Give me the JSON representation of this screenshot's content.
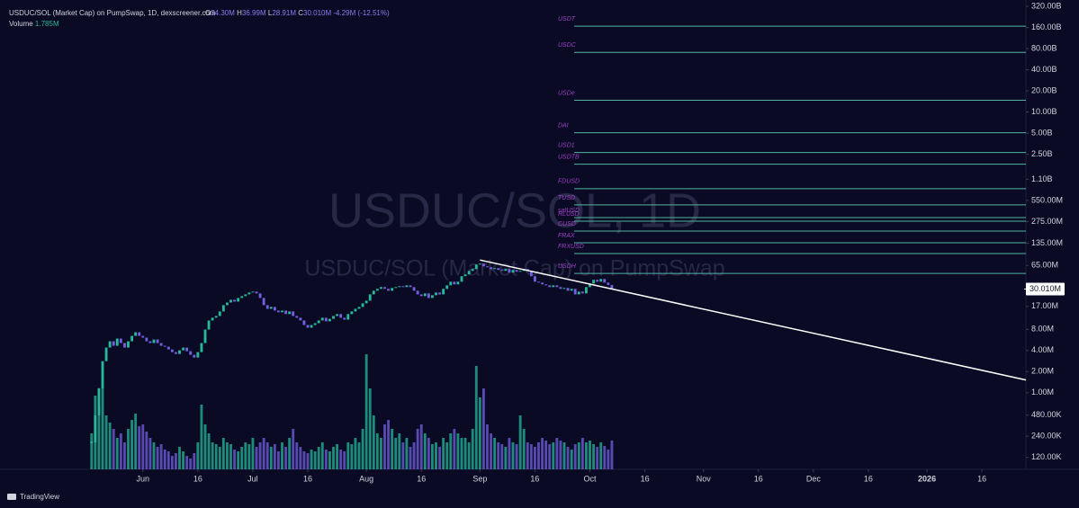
{
  "chart_data": {
    "type": "candlestick",
    "title": "USDUC/SOL (Market Cap) on PumpSwap, 1D, dexscreener.com",
    "ohlc": {
      "o_key": "O",
      "open": "34.30M",
      "h_key": "H",
      "high": "36.99M",
      "l_key": "L",
      "low": "28.91M",
      "c_key": "C",
      "close": "30.010M",
      "change": "-4.29M (-12.51%)"
    },
    "volume_name": "Volume",
    "volume_label": "1.785M",
    "watermark": [
      "USDUC/SOL, 1D",
      "USDUC/SOL (Market Cap) on PumpSwap"
    ],
    "brand": "TradingView",
    "log_scale": true,
    "ylim": [
      81000,
      394000000000
    ],
    "yticks": [
      {
        "value": 320000000000,
        "label": "320.00B"
      },
      {
        "value": 160000000000,
        "label": "160.00B"
      },
      {
        "value": 80000000000,
        "label": "80.00B"
      },
      {
        "value": 40000000000,
        "label": "40.00B"
      },
      {
        "value": 20000000000,
        "label": "20.00B"
      },
      {
        "value": 10000000000,
        "label": "10.00B"
      },
      {
        "value": 5000000000,
        "label": "5.00B"
      },
      {
        "value": 2500000000,
        "label": "2.50B"
      },
      {
        "value": 1100000000,
        "label": "1.10B"
      },
      {
        "value": 550000000,
        "label": "550.00M"
      },
      {
        "value": 275000000,
        "label": "275.00M"
      },
      {
        "value": 135000000,
        "label": "135.00M"
      },
      {
        "value": 65000000,
        "label": "65.00M"
      },
      {
        "value": 17000000,
        "label": "17.00M"
      },
      {
        "value": 8000000,
        "label": "8.00M"
      },
      {
        "value": 4000000,
        "label": "4.00M"
      },
      {
        "value": 2000000,
        "label": "2.00M"
      },
      {
        "value": 1000000,
        "label": "1.00M"
      },
      {
        "value": 480000,
        "label": "480.00K"
      },
      {
        "value": 240000,
        "label": "240.00K"
      },
      {
        "value": 120000,
        "label": "120.00K"
      }
    ],
    "last_label": "30.010M",
    "xlim": [
      -25,
      255
    ],
    "xticks": [
      {
        "value": 14,
        "label": "Jun"
      },
      {
        "value": 29,
        "label": "16"
      },
      {
        "value": 44,
        "label": "Jul"
      },
      {
        "value": 59,
        "label": "16"
      },
      {
        "value": 75,
        "label": "Aug"
      },
      {
        "value": 90,
        "label": "16"
      },
      {
        "value": 106,
        "label": "Sep"
      },
      {
        "value": 121,
        "label": "16"
      },
      {
        "value": 136,
        "label": "Oct"
      },
      {
        "value": 151,
        "label": "16"
      },
      {
        "value": 167,
        "label": "Nov"
      },
      {
        "value": 182,
        "label": "16"
      },
      {
        "value": 197,
        "label": "Dec"
      },
      {
        "value": 212,
        "label": "16"
      },
      {
        "value": 228,
        "label": "2026"
      },
      {
        "value": 243,
        "label": "16"
      }
    ],
    "up_color": "#26b89a",
    "down_color": "#7360e0",
    "close": [
      196000,
      477000,
      1160000,
      2820000,
      4400000,
      5410000,
      4670000,
      5910000,
      5100000,
      4400000,
      5410000,
      6460000,
      7280000,
      6460000,
      6090000,
      5410000,
      5100000,
      5740000,
      5100000,
      4670000,
      4530000,
      4140000,
      3790000,
      3570000,
      4020000,
      4400000,
      3910000,
      3470000,
      3170000,
      3790000,
      5100000,
      7950000,
      10700000,
      11700000,
      12400000,
      14400000,
      17700000,
      19300000,
      21100000,
      19900000,
      22400000,
      23800000,
      25200000,
      26800000,
      27600000,
      26000000,
      22400000,
      17700000,
      15700000,
      16700000,
      14800000,
      14000000,
      14800000,
      13200000,
      14400000,
      12400000,
      11700000,
      10700000,
      9220000,
      8440000,
      9220000,
      9790000,
      10700000,
      11700000,
      10400000,
      11300000,
      12400000,
      13200000,
      11700000,
      11000000,
      13200000,
      14400000,
      15700000,
      16700000,
      18800000,
      20500000,
      25200000,
      28400000,
      30200000,
      32000000,
      30200000,
      28400000,
      31100000,
      32000000,
      33000000,
      32000000,
      33900000,
      32000000,
      28400000,
      25200000,
      23800000,
      26000000,
      22400000,
      24500000,
      26800000,
      25200000,
      30200000,
      33900000,
      38200000,
      35000000,
      38200000,
      45700000,
      48400000,
      54500000,
      57900000,
      67100000,
      69100000,
      63200000,
      61400000,
      57900000,
      59600000,
      56200000,
      54500000,
      57900000,
      51400000,
      56200000,
      52900000,
      54500000,
      57900000,
      54500000,
      45700000,
      38200000,
      37100000,
      35000000,
      33900000,
      32000000,
      33900000,
      32000000,
      30200000,
      31100000,
      28400000,
      30200000,
      25200000,
      27600000,
      26000000,
      32000000,
      36000000,
      40600000,
      38200000,
      41800000,
      37100000,
      34300000,
      30010000
    ],
    "volume": [
      2232000,
      4576000,
      3906000,
      5134000,
      3348000,
      2902000,
      2511000,
      1953000,
      2232000,
      1674000,
      2511000,
      3069000,
      3460000,
      2678000,
      2790000,
      2344000,
      1953000,
      1674000,
      1395000,
      1562000,
      1228000,
      1116000,
      837000,
      1004000,
      1395000,
      1116000,
      837000,
      670000,
      1004000,
      1674000,
      4018000,
      2790000,
      2232000,
      1674000,
      1562000,
      1395000,
      1953000,
      1674000,
      1562000,
      1228000,
      1116000,
      1395000,
      1674000,
      1562000,
      1953000,
      1395000,
      1674000,
      1953000,
      1674000,
      1395000,
      1562000,
      1116000,
      1674000,
      1395000,
      1953000,
      2511000,
      1674000,
      1395000,
      1116000,
      1004000,
      1228000,
      1116000,
      1395000,
      1674000,
      1228000,
      1116000,
      1395000,
      1562000,
      1228000,
      1116000,
      1674000,
      1562000,
      1953000,
      1674000,
      2511000,
      7142000,
      5022000,
      3348000,
      2232000,
      1953000,
      2790000,
      3069000,
      2511000,
      1953000,
      2232000,
      1674000,
      1953000,
      1395000,
      1674000,
      2511000,
      2790000,
      2232000,
      1953000,
      1562000,
      1674000,
      1395000,
      1953000,
      1674000,
      2232000,
      2511000,
      2232000,
      1953000,
      1953000,
      1674000,
      2511000,
      6417000,
      4464000,
      5022000,
      2790000,
      2232000,
      1953000,
      1674000,
      1562000,
      1395000,
      1953000,
      1674000,
      1562000,
      3348000,
      2511000,
      1674000,
      1562000,
      1395000,
      1674000,
      1953000,
      1786000,
      1562000,
      1674000,
      1953000,
      1786000,
      1674000,
      1395000,
      1228000,
      1562000,
      1674000,
      1953000,
      1674000,
      1786000,
      1562000,
      1395000,
      1674000,
      1451000,
      1228000,
      1785000
    ],
    "volume_ylim": [
      0,
      7200000
    ],
    "levels": [
      {
        "name": "USDT",
        "value": 167000000000
      },
      {
        "name": "USDC",
        "value": 70700000000
      },
      {
        "name": "USDe",
        "value": 14700000000
      },
      {
        "name": "DAI",
        "value": 5070000000
      },
      {
        "name": "USD1",
        "value": 2650000000
      },
      {
        "name": "USDTB",
        "value": 1800000000
      },
      {
        "name": "FDUSD",
        "value": 808000000
      },
      {
        "name": "TUSD",
        "value": 474000000
      },
      {
        "name": "satUSD",
        "value": 313000000
      },
      {
        "name": "RLUSD",
        "value": 278000000
      },
      {
        "name": "CUSD",
        "value": 201000000
      },
      {
        "name": "FRAX",
        "value": 137000000
      },
      {
        "name": "FRXUSD",
        "value": 96000000
      },
      {
        "name": "USDH",
        "value": 50000000
      }
    ],
    "level_color": "#4fb3a0",
    "level_label_color": "#9b3fc4",
    "trendline": {
      "x": [
        106,
        255
      ],
      "values": [
        77800000,
        1520000
      ],
      "color": "#ffffff"
    }
  }
}
